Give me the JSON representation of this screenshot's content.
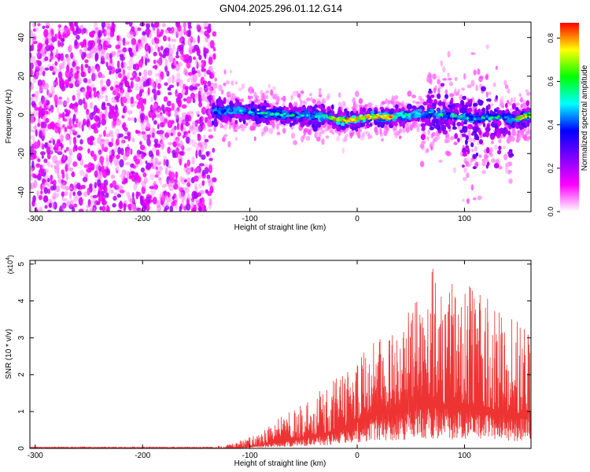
{
  "title": "GN04.2025.296.01.12.G14",
  "chart_data": [
    {
      "type": "heatmap",
      "xlabel": "Height of straight line (km)",
      "ylabel": "Frequency (Hz)",
      "xlim": [
        -305,
        162
      ],
      "ylim": [
        -50,
        48
      ],
      "xticks": [
        -300,
        -200,
        -100,
        0,
        100
      ],
      "yticks": [
        -40,
        -20,
        0,
        20,
        40
      ],
      "noise_region_x": [
        -305,
        -133
      ],
      "ridge": {
        "x": [
          -130,
          -110,
          -90,
          -70,
          -50,
          -30,
          -10,
          0,
          10,
          30,
          50,
          70,
          80,
          90,
          110,
          130,
          150,
          160
        ],
        "y": [
          2,
          2,
          1,
          0,
          0,
          -1,
          -3,
          -2,
          -1,
          -1,
          0,
          1,
          0,
          0,
          -2,
          -1,
          -2,
          0
        ]
      },
      "colorbar": {
        "label": "Normalized spectral amplitude",
        "range": [
          0,
          0.87
        ],
        "ticks": [
          0.0,
          0.2,
          0.4,
          0.6,
          0.8
        ],
        "colormap": [
          "#ffffff",
          "#ff00ff",
          "#8000ff",
          "#0000ff",
          "#00ffff",
          "#00ff00",
          "#ffff00",
          "#ff0000"
        ]
      }
    },
    {
      "type": "line",
      "xlabel": "Height of straight line (km)",
      "ylabel": "SNR (10 * v/v)",
      "ylabel_scale": "(x10^4)",
      "multiplier_base": "(x10",
      "multiplier_exp": "4",
      "multiplier_end": ")",
      "xlim": [
        -305,
        162
      ],
      "ylim": [
        0,
        5.1
      ],
      "xticks": [
        -300,
        -200,
        -100,
        0,
        100
      ],
      "yticks": [
        0,
        1,
        2,
        3,
        4,
        5
      ],
      "color": "#ee3333",
      "envelope": {
        "x": [
          -305,
          -140,
          -125,
          -110,
          -90,
          -70,
          -50,
          -30,
          -10,
          0,
          20,
          40,
          60,
          70,
          80,
          100,
          120,
          140,
          162
        ],
        "peak": [
          0.03,
          0.04,
          0.08,
          0.2,
          0.45,
          0.9,
          1.2,
          1.7,
          2.2,
          2.5,
          3.1,
          3.5,
          4.2,
          5.1,
          4.5,
          4.9,
          4.1,
          3.9,
          3.0
        ],
        "base": [
          0.0,
          0.0,
          0.0,
          0.02,
          0.1,
          0.2,
          0.3,
          0.4,
          0.6,
          0.8,
          1.0,
          1.1,
          1.2,
          1.3,
          1.2,
          1.2,
          1.1,
          1.0,
          0.9
        ]
      }
    }
  ]
}
